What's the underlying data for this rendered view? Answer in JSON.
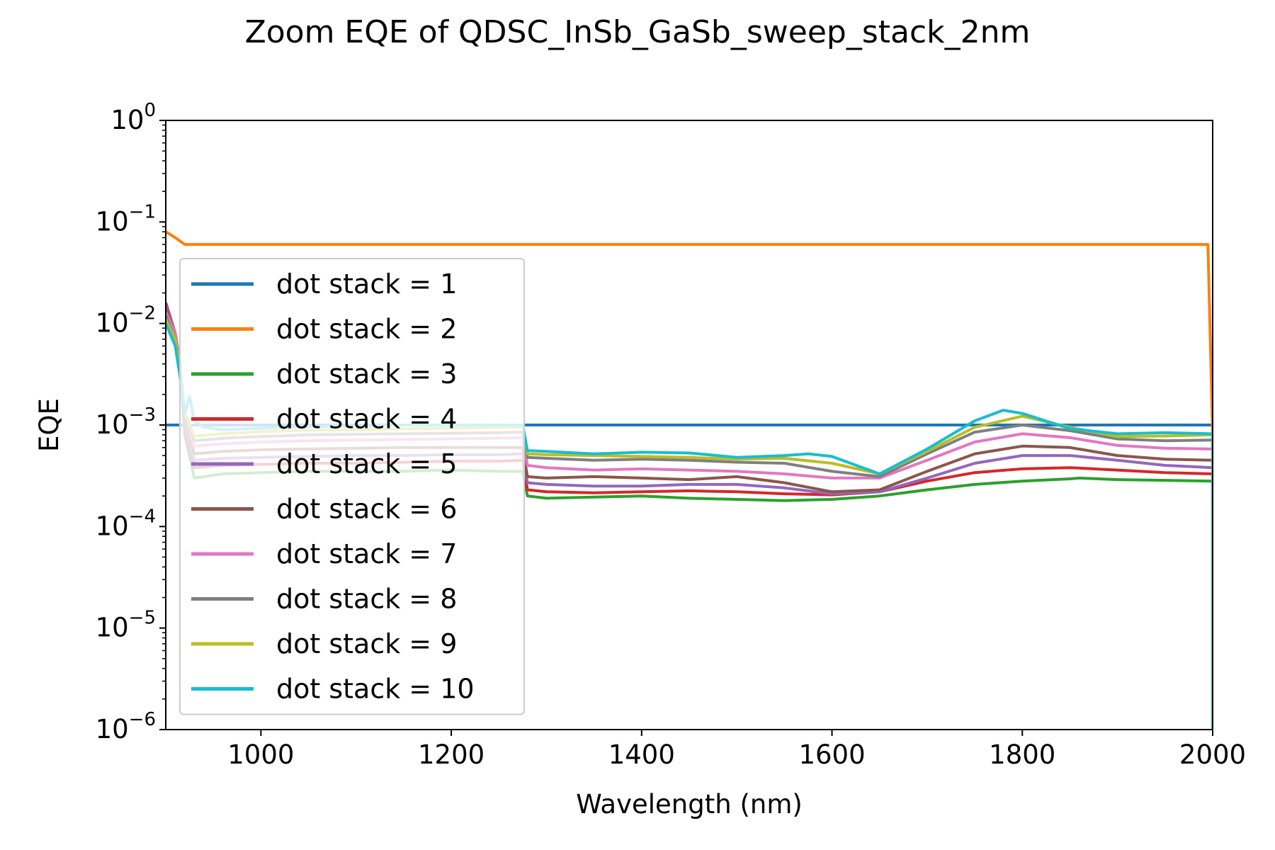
{
  "chart_data": {
    "type": "line",
    "title": "Zoom EQE of QDSC_InSb_GaSb_sweep_stack_2nm",
    "xlabel": "Wavelength (nm)",
    "ylabel": "EQE",
    "xlim": [
      900,
      2000
    ],
    "ylim": [
      1e-06,
      1
    ],
    "yscale": "log",
    "grid": false,
    "legend_position": "lower-left",
    "x_ticks": [
      {
        "value": 1000,
        "label": "1000"
      },
      {
        "value": 1200,
        "label": "1200"
      },
      {
        "value": 1400,
        "label": "1400"
      },
      {
        "value": 1600,
        "label": "1600"
      },
      {
        "value": 1800,
        "label": "1800"
      },
      {
        "value": 2000,
        "label": "2000"
      }
    ],
    "y_ticks": [
      {
        "value": 1,
        "base": "10",
        "exp": "0"
      },
      {
        "value": 0.1,
        "base": "10",
        "exp": "−1"
      },
      {
        "value": 0.01,
        "base": "10",
        "exp": "−2"
      },
      {
        "value": 0.001,
        "base": "10",
        "exp": "−3"
      },
      {
        "value": 0.0001,
        "base": "10",
        "exp": "−4"
      },
      {
        "value": 1e-05,
        "base": "10",
        "exp": "−5"
      },
      {
        "value": 1e-06,
        "base": "10",
        "exp": "−6"
      }
    ],
    "series": [
      {
        "name": "dot stack = 1",
        "color": "#1f77b4",
        "x": [
          900,
          2000
        ],
        "y": [
          0.001,
          0.001
        ]
      },
      {
        "name": "dot stack = 2",
        "color": "#ff7f0e",
        "x": [
          900,
          905,
          910,
          920,
          1000,
          1400,
          1800,
          1995,
          2000,
          2000
        ],
        "y": [
          0.08,
          0.075,
          0.07,
          0.06,
          0.06,
          0.06,
          0.06,
          0.06,
          0.0008,
          0.0003
        ]
      },
      {
        "name": "dot stack = 3",
        "color": "#2ca02c",
        "x": [
          900,
          910,
          915,
          920,
          930,
          960,
          1000,
          1050,
          1100,
          1150,
          1200,
          1250,
          1275,
          1280,
          1300,
          1350,
          1400,
          1450,
          1500,
          1550,
          1600,
          1650,
          1700,
          1750,
          1800,
          1850,
          1860,
          1900,
          1950,
          2000
        ],
        "y": [
          0.015,
          0.008,
          0.004,
          0.0008,
          0.0003,
          0.00033,
          0.00034,
          0.00035,
          0.00035,
          0.00035,
          0.00036,
          0.00035,
          0.00035,
          0.0002,
          0.00019,
          0.000195,
          0.0002,
          0.00019,
          0.000185,
          0.00018,
          0.000185,
          0.0002,
          0.00023,
          0.00026,
          0.00028,
          0.000295,
          0.0003,
          0.00029,
          0.000285,
          0.00028
        ]
      },
      {
        "name": "dot stack = 4",
        "color": "#d62728",
        "x": [
          900,
          910,
          915,
          920,
          930,
          960,
          1000,
          1050,
          1100,
          1150,
          1200,
          1250,
          1275,
          1280,
          1300,
          1350,
          1400,
          1450,
          1500,
          1550,
          1600,
          1650,
          1700,
          1750,
          1800,
          1850,
          1900,
          1950,
          2000
        ],
        "y": [
          0.016,
          0.008,
          0.004,
          0.0009,
          0.00038,
          0.0004,
          0.00041,
          0.00042,
          0.00042,
          0.00043,
          0.00044,
          0.00044,
          0.00045,
          0.00023,
          0.00022,
          0.000215,
          0.00022,
          0.000225,
          0.00022,
          0.00021,
          0.000205,
          0.00022,
          0.00028,
          0.00034,
          0.00037,
          0.00038,
          0.00036,
          0.00034,
          0.00033
        ]
      },
      {
        "name": "dot stack = 5",
        "color": "#9467bd",
        "x": [
          900,
          910,
          915,
          920,
          930,
          960,
          1000,
          1050,
          1100,
          1150,
          1200,
          1250,
          1275,
          1280,
          1300,
          1350,
          1400,
          1450,
          1500,
          1550,
          1600,
          1650,
          1700,
          1750,
          1800,
          1850,
          1900,
          1950,
          2000
        ],
        "y": [
          0.015,
          0.008,
          0.004,
          0.001,
          0.00045,
          0.00047,
          0.00048,
          0.00049,
          0.0005,
          0.0005,
          0.00051,
          0.00051,
          0.00052,
          0.00027,
          0.00026,
          0.00025,
          0.00025,
          0.00026,
          0.00026,
          0.00024,
          0.00021,
          0.00022,
          0.0003,
          0.00042,
          0.0005,
          0.0005,
          0.00045,
          0.0004,
          0.00038
        ]
      },
      {
        "name": "dot stack = 6",
        "color": "#8c564b",
        "x": [
          900,
          910,
          915,
          920,
          930,
          960,
          1000,
          1050,
          1100,
          1150,
          1200,
          1250,
          1275,
          1280,
          1300,
          1350,
          1400,
          1450,
          1500,
          1550,
          1600,
          1650,
          1700,
          1750,
          1800,
          1850,
          1900,
          1950,
          2000
        ],
        "y": [
          0.014,
          0.008,
          0.004,
          0.0011,
          0.00052,
          0.00055,
          0.00057,
          0.00058,
          0.00059,
          0.0006,
          0.0006,
          0.0006,
          0.0006,
          0.00031,
          0.0003,
          0.00031,
          0.0003,
          0.00029,
          0.00031,
          0.00027,
          0.00022,
          0.00023,
          0.00035,
          0.00052,
          0.00062,
          0.0006,
          0.0005,
          0.00046,
          0.00045
        ]
      },
      {
        "name": "dot stack = 7",
        "color": "#e377c2",
        "x": [
          900,
          910,
          915,
          920,
          930,
          960,
          1000,
          1050,
          1100,
          1150,
          1200,
          1250,
          1275,
          1280,
          1300,
          1350,
          1400,
          1450,
          1500,
          1550,
          1600,
          1650,
          1700,
          1750,
          1800,
          1850,
          1900,
          1950,
          2000
        ],
        "y": [
          0.013,
          0.008,
          0.004,
          0.0012,
          0.00062,
          0.00065,
          0.00068,
          0.0007,
          0.00071,
          0.00072,
          0.00073,
          0.00074,
          0.00075,
          0.0004,
          0.00038,
          0.00036,
          0.00037,
          0.00036,
          0.00035,
          0.00033,
          0.0003,
          0.0003,
          0.00045,
          0.00068,
          0.00082,
          0.00075,
          0.00063,
          0.00059,
          0.00058
        ]
      },
      {
        "name": "dot stack = 8",
        "color": "#7f7f7f",
        "x": [
          900,
          910,
          915,
          920,
          930,
          960,
          1000,
          1050,
          1100,
          1150,
          1200,
          1250,
          1275,
          1280,
          1300,
          1350,
          1400,
          1450,
          1500,
          1550,
          1600,
          1650,
          1700,
          1750,
          1800,
          1850,
          1900,
          1950,
          2000
        ],
        "y": [
          0.012,
          0.007,
          0.0035,
          0.0012,
          0.0007,
          0.00074,
          0.00077,
          0.0008,
          0.00081,
          0.00082,
          0.00083,
          0.00084,
          0.00085,
          0.00048,
          0.00047,
          0.00045,
          0.00046,
          0.00045,
          0.00043,
          0.00042,
          0.00035,
          0.00031,
          0.00052,
          0.00085,
          0.001,
          0.00088,
          0.00073,
          0.0007,
          0.00071
        ]
      },
      {
        "name": "dot stack = 9",
        "color": "#bcbd22",
        "x": [
          900,
          910,
          915,
          920,
          930,
          960,
          1000,
          1050,
          1100,
          1150,
          1200,
          1250,
          1275,
          1280,
          1300,
          1350,
          1400,
          1450,
          1500,
          1550,
          1600,
          1650,
          1700,
          1750,
          1800,
          1850,
          1900,
          1950,
          2000
        ],
        "y": [
          0.011,
          0.007,
          0.0035,
          0.0013,
          0.00078,
          0.00082,
          0.00086,
          0.00089,
          0.0009,
          0.00092,
          0.00093,
          0.00095,
          0.00096,
          0.00052,
          0.00051,
          0.0005,
          0.00049,
          0.00048,
          0.00046,
          0.00047,
          0.00042,
          0.00033,
          0.00055,
          0.00095,
          0.00122,
          0.00095,
          0.00077,
          0.00078,
          0.0008
        ]
      },
      {
        "name": "dot stack = 10",
        "color": "#17becf",
        "x": [
          900,
          910,
          915,
          920,
          925,
          930,
          940,
          960,
          1000,
          1050,
          1100,
          1150,
          1200,
          1250,
          1275,
          1280,
          1300,
          1350,
          1400,
          1450,
          1500,
          1550,
          1575,
          1600,
          1650,
          1700,
          1750,
          1780,
          1800,
          1850,
          1900,
          1950,
          2000,
          2000
        ],
        "y": [
          0.01,
          0.006,
          0.003,
          0.0013,
          0.0019,
          0.0011,
          0.00095,
          0.0009,
          0.00093,
          0.00096,
          0.00098,
          0.001,
          0.001,
          0.001,
          0.001,
          0.00056,
          0.00055,
          0.00052,
          0.00054,
          0.00053,
          0.00048,
          0.0005,
          0.00052,
          0.00049,
          0.00033,
          0.00058,
          0.0011,
          0.0014,
          0.0013,
          0.00092,
          0.00082,
          0.00084,
          0.00082,
          1e-06
        ]
      }
    ]
  }
}
